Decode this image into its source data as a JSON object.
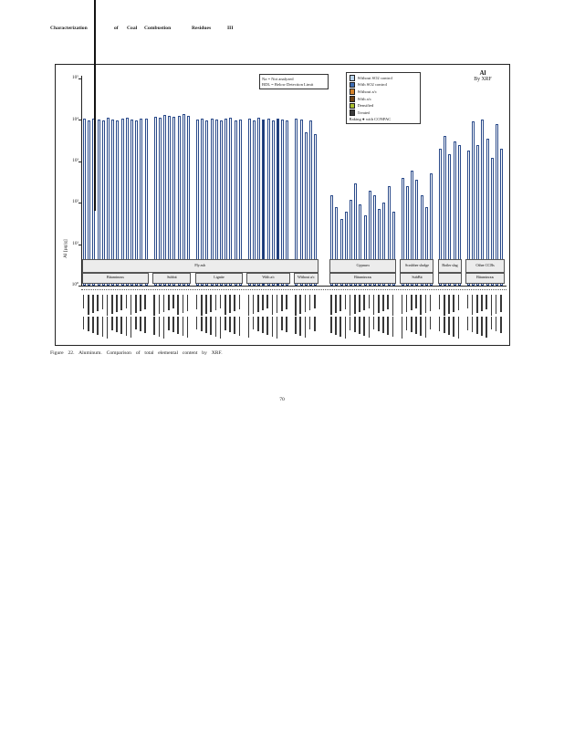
{
  "page": {
    "header_words": [
      "Characterization",
      "of",
      "Coal",
      "Combustion",
      "Residues",
      "III"
    ],
    "caption": "Figure 22.  Aluminum.  Comparison of total elemental content by XRF.",
    "page_number": "70"
  },
  "figure": {
    "title_line1": "Al",
    "title_line2": "By XRF",
    "y_axis_label": "Al [µg/g]",
    "notes": [
      "Na = Not analyzed",
      "BDL = Below Detection Limit"
    ],
    "legend_items": [
      {
        "label": "Without SO2 control",
        "color": "#b8d2ea"
      },
      {
        "label": "With SO2 control",
        "color": "#3d6cb4"
      },
      {
        "label": "Without a/c",
        "color": "#d4822a"
      },
      {
        "label": "With a/c",
        "color": "#6e4316"
      },
      {
        "label": "Densified",
        "color": "#aabf2e"
      },
      {
        "label": "Treated",
        "color": "#3c3c3c"
      }
    ],
    "legend_footer": "Baking  ● with CONPAC"
  },
  "chart_data": {
    "type": "bar",
    "title": "Al By XRF",
    "ylabel": "Al [µg/g]",
    "yscale": "log",
    "ylim": [
      1,
      100000
    ],
    "y_tick_labels": [
      "10⁵",
      "10⁴",
      "10³",
      "10²",
      "10¹",
      "10⁰"
    ],
    "x_tick_labels_note": "rotated per-sample identifiers (illegible at scan resolution)",
    "band_row1": [
      {
        "label": "Fly ash",
        "from": 0,
        "to": 4
      },
      {
        "label": "Gypsum",
        "from": 5,
        "to": 5
      },
      {
        "label": "Scrubber sludge",
        "from": 6,
        "to": 6
      },
      {
        "label": "Boiler slag",
        "from": 7,
        "to": 7
      },
      {
        "label": "Other CCBs",
        "from": 8,
        "to": 8
      }
    ],
    "groups": [
      {
        "band2": "Bituminous",
        "values": [
          11000,
          9500,
          10500,
          10000,
          9800,
          11500,
          10200,
          9900,
          10800,
          11200,
          10400,
          9700,
          11000,
          10600
        ]
      },
      {
        "band2": "Subbit",
        "values": [
          12000,
          11500,
          13000,
          12500,
          11800,
          12200,
          13500,
          12800
        ]
      },
      {
        "band2": "Lignite",
        "values": [
          10000,
          10500,
          9800,
          11000,
          10200,
          9500,
          10800,
          11500,
          9900,
          10300
        ]
      },
      {
        "band2": "With a/c",
        "values": [
          10500,
          9800,
          11200,
          10000,
          10700,
          9600,
          11000,
          10400,
          9900
        ]
      },
      {
        "band2": "Without a/c",
        "values": [
          10800,
          10200,
          5000,
          9700,
          4500
        ]
      },
      {
        "band2": "Bituminous",
        "values": [
          150,
          80,
          40,
          60,
          120,
          300,
          90,
          50,
          200,
          150,
          70,
          100,
          250,
          60
        ]
      },
      {
        "band2": "SubBit",
        "values": [
          400,
          250,
          600,
          350,
          150,
          80,
          500
        ]
      },
      {
        "band2": "",
        "values": [
          2000,
          4000,
          1500,
          3000,
          2500
        ]
      },
      {
        "band2": "Bituminous",
        "values": [
          1800,
          9000,
          2500,
          10000,
          3500,
          1200,
          8000,
          2000
        ]
      }
    ],
    "filled_bar_indices": [
      35,
      38
    ],
    "colors": {
      "bar_outline": "#2a4a8a",
      "bar_fill": "#ffffff",
      "bar_filled": "#16336e",
      "band_bg": "#ececec"
    }
  }
}
